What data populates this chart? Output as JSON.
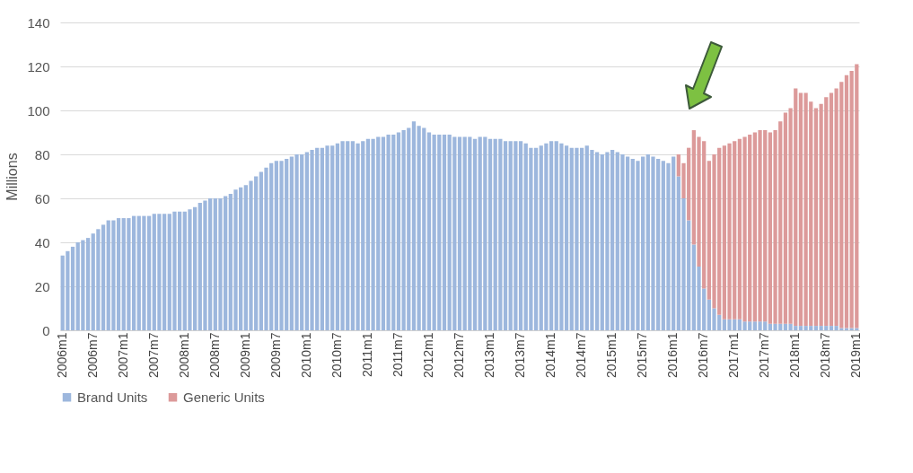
{
  "chart_data": {
    "type": "bar",
    "stacked": true,
    "ylabel": "Millions",
    "ylim": [
      0,
      140
    ],
    "yticks": [
      0,
      20,
      40,
      60,
      80,
      100,
      120,
      140
    ],
    "grid": "y",
    "legend": "bottom",
    "categories": [
      "2006m1",
      null,
      null,
      null,
      null,
      null,
      "2006m7",
      null,
      null,
      null,
      null,
      null,
      "2007m1",
      null,
      null,
      null,
      null,
      null,
      "2007m7",
      null,
      null,
      null,
      null,
      null,
      "2008m1",
      null,
      null,
      null,
      null,
      null,
      "2008m7",
      null,
      null,
      null,
      null,
      null,
      "2009m1",
      null,
      null,
      null,
      null,
      null,
      "2009m7",
      null,
      null,
      null,
      null,
      null,
      "2010m1",
      null,
      null,
      null,
      null,
      null,
      "2010m7",
      null,
      null,
      null,
      null,
      null,
      "2011m1",
      null,
      null,
      null,
      null,
      null,
      "2011m7",
      null,
      null,
      null,
      null,
      null,
      "2012m1",
      null,
      null,
      null,
      null,
      null,
      "2012m7",
      null,
      null,
      null,
      null,
      null,
      "2013m1",
      null,
      null,
      null,
      null,
      null,
      "2013m7",
      null,
      null,
      null,
      null,
      null,
      "2014m1",
      null,
      null,
      null,
      null,
      null,
      "2014m7",
      null,
      null,
      null,
      null,
      null,
      "2015m1",
      null,
      null,
      null,
      null,
      null,
      "2015m7",
      null,
      null,
      null,
      null,
      null,
      "2016m1",
      null,
      null,
      null,
      null,
      null,
      "2016m7",
      null,
      null,
      null,
      null,
      null,
      "2017m1",
      null,
      null,
      null,
      null,
      null,
      "2017m7",
      null,
      null,
      null,
      null,
      null,
      "2018m1",
      null,
      null,
      null,
      null,
      null,
      "2018m7",
      null,
      null,
      null,
      null,
      null,
      "2019m1"
    ],
    "series": [
      {
        "name": "Brand Units",
        "color": "#9db7dd",
        "values": [
          34,
          36,
          38,
          40,
          41,
          42,
          44,
          46,
          48,
          50,
          50,
          51,
          51,
          51,
          52,
          52,
          52,
          52,
          53,
          53,
          53,
          53,
          54,
          54,
          54,
          55,
          56,
          58,
          59,
          60,
          60,
          60,
          61,
          62,
          64,
          65,
          66,
          68,
          70,
          72,
          74,
          76,
          77,
          77,
          78,
          79,
          80,
          80,
          81,
          82,
          83,
          83,
          84,
          84,
          85,
          86,
          86,
          86,
          85,
          86,
          87,
          87,
          88,
          88,
          89,
          89,
          90,
          91,
          92,
          95,
          93,
          92,
          90,
          89,
          89,
          89,
          89,
          88,
          88,
          88,
          88,
          87,
          88,
          88,
          87,
          87,
          87,
          86,
          86,
          86,
          86,
          85,
          83,
          83,
          84,
          85,
          86,
          86,
          85,
          84,
          83,
          83,
          83,
          84,
          82,
          81,
          80,
          81,
          82,
          81,
          80,
          79,
          78,
          77,
          79,
          80,
          79,
          78,
          77,
          76,
          79,
          70,
          60,
          50,
          39,
          29,
          19,
          14,
          10,
          7,
          5,
          5,
          5,
          5,
          4,
          4,
          4,
          4,
          4,
          3,
          3,
          3,
          3,
          3,
          2,
          2,
          2,
          2,
          2,
          2,
          2,
          2,
          2,
          1,
          1,
          1,
          1
        ]
      },
      {
        "name": "Generic Units",
        "color": "#dc9a9a",
        "values": [
          null,
          null,
          null,
          null,
          null,
          null,
          null,
          null,
          null,
          null,
          null,
          null,
          null,
          null,
          null,
          null,
          null,
          null,
          null,
          null,
          null,
          null,
          null,
          null,
          null,
          null,
          null,
          null,
          null,
          null,
          null,
          null,
          null,
          null,
          null,
          null,
          null,
          null,
          null,
          null,
          null,
          null,
          null,
          null,
          null,
          null,
          null,
          null,
          null,
          null,
          null,
          null,
          null,
          null,
          null,
          null,
          null,
          null,
          null,
          null,
          null,
          null,
          null,
          null,
          null,
          null,
          null,
          null,
          null,
          null,
          null,
          null,
          null,
          null,
          null,
          null,
          null,
          null,
          null,
          null,
          null,
          null,
          null,
          null,
          null,
          null,
          null,
          null,
          null,
          null,
          null,
          null,
          null,
          null,
          null,
          null,
          null,
          null,
          null,
          null,
          null,
          null,
          null,
          null,
          null,
          null,
          null,
          null,
          null,
          null,
          null,
          null,
          null,
          null,
          null,
          null,
          null,
          null,
          null,
          null,
          null,
          10,
          16,
          33,
          52,
          59,
          67,
          63,
          70,
          76,
          79,
          80,
          81,
          82,
          84,
          85,
          86,
          87,
          87,
          87,
          88,
          92,
          96,
          98,
          108,
          106,
          106,
          102,
          99,
          101,
          104,
          106,
          108,
          112,
          115,
          117,
          120
        ]
      }
    ]
  }
}
